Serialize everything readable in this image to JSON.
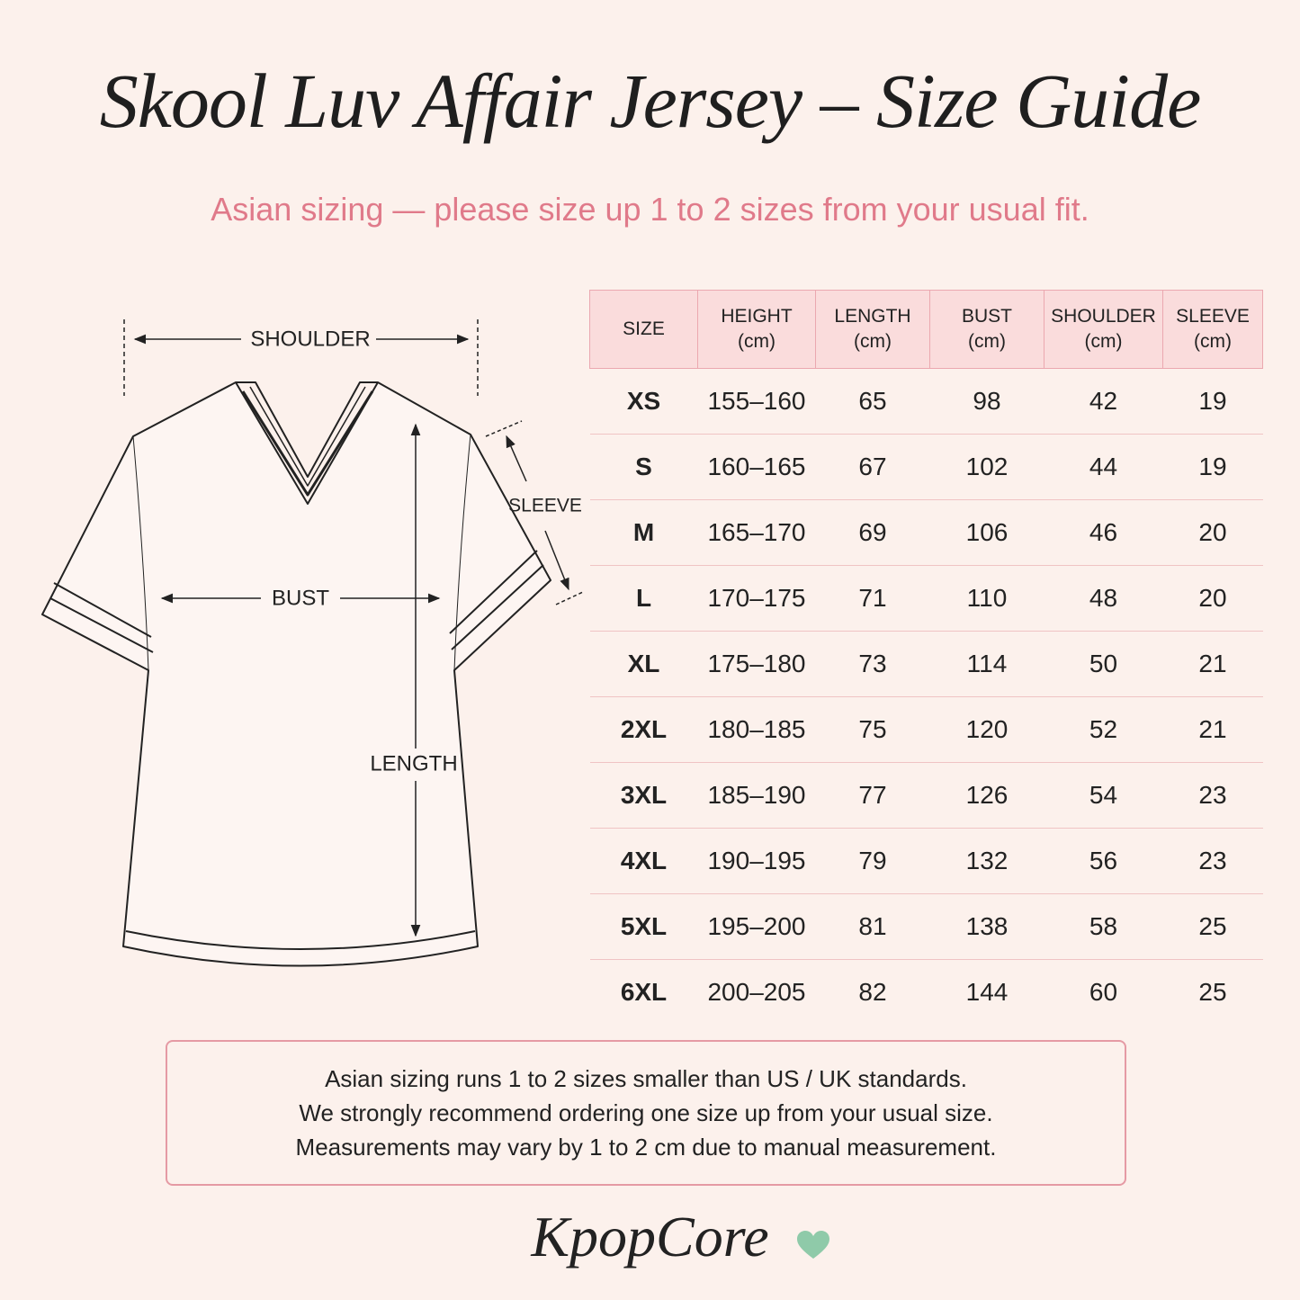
{
  "header": {
    "title": "Skool Luv Affair Jersey – Size Guide",
    "subtitle": "Asian sizing — please size up 1 to 2 sizes from your usual fit."
  },
  "diagram": {
    "shoulder": "SHOULDER",
    "bust": "BUST",
    "length": "LENGTH",
    "sleeve": "SLEEVE"
  },
  "table": {
    "columns": [
      {
        "label": "SIZE"
      },
      {
        "label": "HEIGHT",
        "unit": "(cm)"
      },
      {
        "label": "LENGTH",
        "unit": "(cm)"
      },
      {
        "label": "BUST",
        "unit": "(cm)"
      },
      {
        "label": "SHOULDER",
        "unit": "(cm)"
      },
      {
        "label": "SLEEVE",
        "unit": "(cm)"
      }
    ],
    "rows": [
      [
        "XS",
        "155–160",
        65,
        98,
        42,
        19
      ],
      [
        "S",
        "160–165",
        67,
        102,
        44,
        19
      ],
      [
        "M",
        "165–170",
        69,
        106,
        46,
        20
      ],
      [
        "L",
        "170–175",
        71,
        110,
        48,
        20
      ],
      [
        "XL",
        "175–180",
        73,
        114,
        50,
        21
      ],
      [
        "2XL",
        "180–185",
        75,
        120,
        52,
        21
      ],
      [
        "3XL",
        "185–190",
        77,
        126,
        54,
        23
      ],
      [
        "4XL",
        "190–195",
        79,
        132,
        56,
        23
      ],
      [
        "5XL",
        "195–200",
        81,
        138,
        58,
        25
      ],
      [
        "6XL",
        "200–205",
        82,
        144,
        60,
        25
      ]
    ]
  },
  "note": [
    "Asian sizing runs 1 to 2 sizes smaller than US / UK standards.",
    "We strongly recommend ordering one size up from your usual size.",
    "Measurements may vary by 1 to 2 cm due to manual measurement."
  ],
  "brand": "KpopCore"
}
